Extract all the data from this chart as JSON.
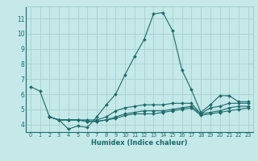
{
  "background_color": "#c5e8e8",
  "grid_color": "#a8d0d0",
  "line_color": "#1a6b6b",
  "xlabel": "Humidex (Indice chaleur)",
  "xlim": [
    -0.5,
    23.5
  ],
  "ylim": [
    3.5,
    11.8
  ],
  "yticks": [
    4,
    5,
    6,
    7,
    8,
    9,
    10,
    11
  ],
  "xticks": [
    0,
    1,
    2,
    3,
    4,
    5,
    6,
    7,
    8,
    9,
    10,
    11,
    12,
    13,
    14,
    15,
    16,
    17,
    18,
    19,
    20,
    21,
    22,
    23
  ],
  "series": [
    {
      "x": [
        0,
        1,
        2,
        3,
        4,
        5,
        6,
        7,
        8,
        9,
        10,
        11,
        12,
        13,
        14,
        15,
        16,
        17,
        18,
        19,
        20,
        21,
        22,
        23
      ],
      "y": [
        6.5,
        6.2,
        4.5,
        4.3,
        3.7,
        3.9,
        3.8,
        4.5,
        5.3,
        6.0,
        7.3,
        8.5,
        9.6,
        11.3,
        11.4,
        10.2,
        7.6,
        6.3,
        4.8,
        5.3,
        5.9,
        5.9,
        5.5,
        5.5
      ]
    },
    {
      "x": [
        2,
        3,
        4,
        5,
        6,
        7,
        8,
        9,
        10,
        11,
        12,
        13,
        14,
        15,
        16,
        17,
        18,
        19,
        20,
        21,
        22,
        23
      ],
      "y": [
        4.5,
        4.3,
        4.3,
        4.3,
        4.3,
        4.3,
        4.5,
        4.9,
        5.1,
        5.2,
        5.3,
        5.3,
        5.3,
        5.4,
        5.4,
        5.4,
        4.7,
        5.1,
        5.2,
        5.4,
        5.4,
        5.4
      ]
    },
    {
      "x": [
        2,
        3,
        4,
        5,
        6,
        7,
        8,
        9,
        10,
        11,
        12,
        13,
        14,
        15,
        16,
        17,
        18,
        19,
        20,
        21,
        22,
        23
      ],
      "y": [
        4.5,
        4.3,
        4.3,
        4.3,
        4.2,
        4.2,
        4.3,
        4.5,
        4.7,
        4.8,
        4.9,
        4.9,
        4.9,
        5.0,
        5.1,
        5.2,
        4.7,
        4.8,
        4.9,
        5.1,
        5.2,
        5.2
      ]
    },
    {
      "x": [
        2,
        3,
        4,
        5,
        6,
        7,
        8,
        9,
        10,
        11,
        12,
        13,
        14,
        15,
        16,
        17,
        18,
        19,
        20,
        21,
        22,
        23
      ],
      "y": [
        4.5,
        4.3,
        4.3,
        4.3,
        4.2,
        4.2,
        4.3,
        4.4,
        4.6,
        4.7,
        4.7,
        4.7,
        4.8,
        4.9,
        5.0,
        5.1,
        4.6,
        4.7,
        4.8,
        4.9,
        5.0,
        5.1
      ]
    }
  ]
}
